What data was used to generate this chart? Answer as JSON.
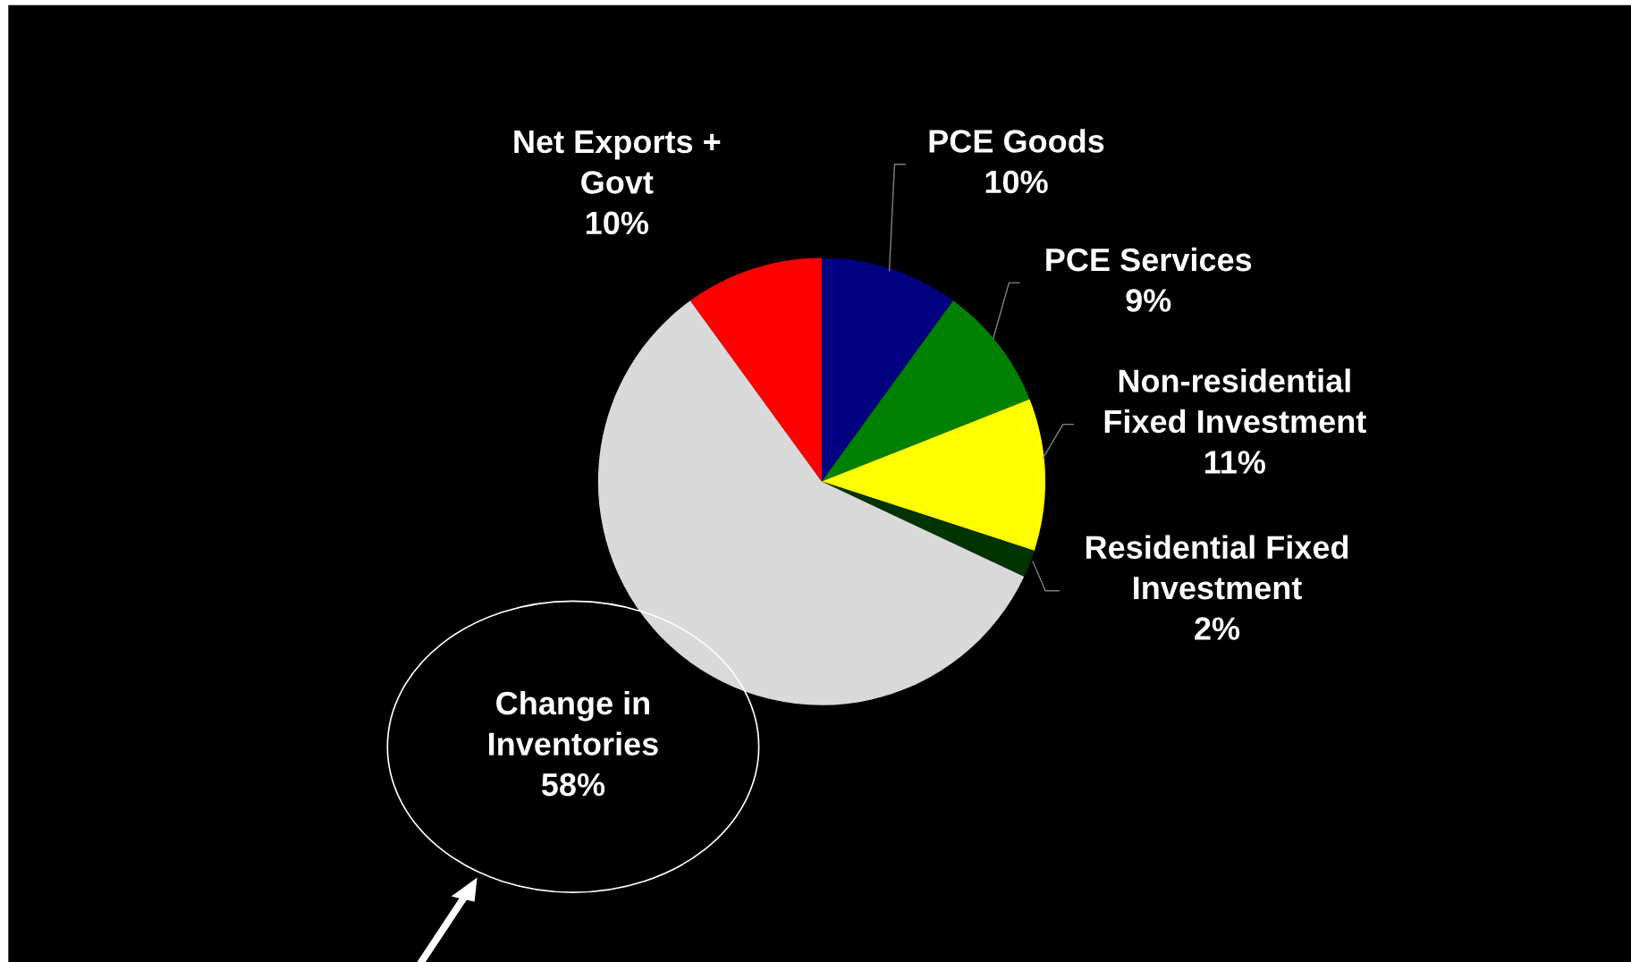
{
  "chart_data": {
    "type": "pie",
    "categories": [
      "PCE Goods",
      "PCE Services",
      "Non-residential Fixed Investment",
      "Residential Fixed Investment",
      "Change in Inventories",
      "Net Exports + Govt"
    ],
    "values": [
      10,
      9,
      11,
      2,
      58,
      10
    ],
    "colors": [
      "#000080",
      "#008000",
      "#ffff00",
      "#003300",
      "#d9d9d9",
      "#ff0000"
    ],
    "value_labels": [
      "10%",
      "9%",
      "11%",
      "2%",
      "58%",
      "10%"
    ],
    "legend": false
  }
}
